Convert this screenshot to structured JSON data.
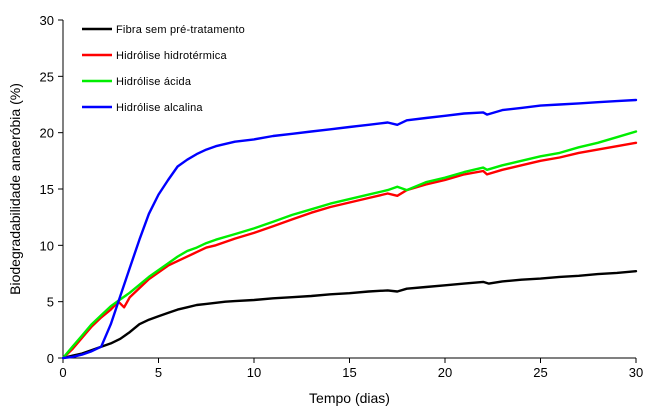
{
  "chart_data": {
    "type": "line",
    "xlabel": "Tempo (dias)",
    "ylabel": "Biodegradabilidade anaeróbia (%)",
    "xlim": [
      0,
      30
    ],
    "ylim": [
      0,
      30
    ],
    "xticks": [
      0,
      5,
      10,
      15,
      20,
      25,
      30
    ],
    "yticks": [
      0,
      5,
      10,
      15,
      20,
      25,
      30
    ],
    "grid": false,
    "legend_position": "top-left",
    "series": [
      {
        "name": "Fibra sem pré-tratamento",
        "color": "#000000",
        "x": [
          0,
          0.5,
          1,
          1.5,
          2,
          2.5,
          3,
          3.5,
          4,
          4.5,
          5,
          5.5,
          6,
          6.5,
          7,
          7.5,
          8,
          8.5,
          9,
          10,
          11,
          12,
          13,
          14,
          15,
          16,
          17,
          17.5,
          18,
          19,
          20,
          21,
          22,
          22.3,
          23,
          24,
          25,
          26,
          27,
          28,
          29,
          30
        ],
        "y": [
          0,
          0.2,
          0.4,
          0.7,
          1.0,
          1.3,
          1.7,
          2.3,
          3.0,
          3.4,
          3.7,
          4.0,
          4.3,
          4.5,
          4.7,
          4.8,
          4.9,
          5.0,
          5.05,
          5.15,
          5.3,
          5.4,
          5.5,
          5.65,
          5.75,
          5.9,
          6.0,
          5.9,
          6.15,
          6.3,
          6.45,
          6.6,
          6.75,
          6.6,
          6.8,
          6.95,
          7.05,
          7.2,
          7.3,
          7.45,
          7.55,
          7.7
        ]
      },
      {
        "name": "Hidrólise hidrotérmica",
        "color": "#ff0000",
        "x": [
          0,
          0.5,
          1,
          1.5,
          2,
          2.5,
          2.9,
          3.2,
          3.5,
          4,
          4.5,
          5,
          5.5,
          6,
          6.5,
          7,
          7.5,
          8,
          9,
          10,
          11,
          12,
          13,
          14,
          15,
          16,
          17,
          17.5,
          18,
          19,
          20,
          21,
          22,
          22.2,
          23,
          24,
          25,
          26,
          27,
          28,
          29,
          30
        ],
        "y": [
          0,
          0.8,
          1.8,
          2.8,
          3.6,
          4.3,
          5.0,
          4.5,
          5.4,
          6.2,
          7.0,
          7.6,
          8.2,
          8.6,
          9.0,
          9.4,
          9.8,
          10.0,
          10.6,
          11.1,
          11.7,
          12.3,
          12.9,
          13.4,
          13.8,
          14.2,
          14.6,
          14.4,
          14.9,
          15.4,
          15.8,
          16.3,
          16.6,
          16.3,
          16.7,
          17.1,
          17.5,
          17.8,
          18.2,
          18.5,
          18.8,
          19.1
        ]
      },
      {
        "name": "Hidrólise ácida",
        "color": "#00ee00",
        "x": [
          0,
          0.5,
          1,
          1.5,
          2,
          2.5,
          3,
          3.5,
          4,
          4.5,
          5,
          5.5,
          6,
          6.5,
          7,
          7.5,
          8,
          9,
          10,
          11,
          12,
          13,
          14,
          15,
          16,
          17,
          17.5,
          18,
          19,
          20,
          21,
          22,
          22.2,
          23,
          24,
          25,
          26,
          27,
          28,
          29,
          30
        ],
        "y": [
          0,
          1.0,
          2.0,
          3.0,
          3.8,
          4.6,
          5.2,
          5.8,
          6.5,
          7.2,
          7.8,
          8.4,
          9.0,
          9.5,
          9.8,
          10.2,
          10.5,
          11.0,
          11.5,
          12.1,
          12.7,
          13.2,
          13.7,
          14.1,
          14.5,
          14.9,
          15.2,
          14.9,
          15.6,
          16.0,
          16.5,
          16.9,
          16.7,
          17.1,
          17.5,
          17.9,
          18.2,
          18.7,
          19.1,
          19.6,
          20.1
        ]
      },
      {
        "name": "Hidrólise alcalina",
        "color": "#0000ff",
        "x": [
          0,
          0.5,
          1,
          1.5,
          2,
          2.5,
          3,
          3.5,
          4,
          4.5,
          5,
          5.5,
          6,
          6.5,
          7,
          7.5,
          8,
          8.5,
          9,
          10,
          11,
          12,
          13,
          14,
          15,
          16,
          17,
          17.5,
          18,
          19,
          20,
          21,
          22,
          22.2,
          23,
          24,
          25,
          26,
          27,
          28,
          29,
          30
        ],
        "y": [
          0,
          0.1,
          0.3,
          0.6,
          1.0,
          3.0,
          5.5,
          8.0,
          10.5,
          12.8,
          14.5,
          15.8,
          17.0,
          17.6,
          18.1,
          18.5,
          18.8,
          19.0,
          19.2,
          19.4,
          19.7,
          19.9,
          20.1,
          20.3,
          20.5,
          20.7,
          20.9,
          20.7,
          21.1,
          21.3,
          21.5,
          21.7,
          21.8,
          21.6,
          22.0,
          22.2,
          22.4,
          22.5,
          22.6,
          22.7,
          22.8,
          22.9
        ]
      }
    ]
  }
}
